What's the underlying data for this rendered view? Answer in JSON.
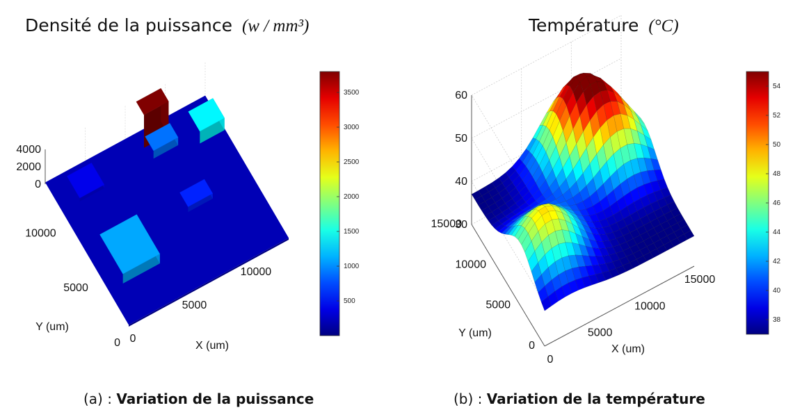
{
  "panel_a": {
    "title": "Densité de la puissance",
    "unit": "(w / mm³)",
    "caption_tag": "(a) :",
    "caption": "Variation de la puissance"
  },
  "panel_b": {
    "title": "Température",
    "unit": "(°C)",
    "caption_tag": "(b) :",
    "caption": "Variation de la température"
  },
  "chart_data": [
    {
      "type": "bar3d",
      "title": "Densité de la puissance (w / mm³)",
      "xlabel": "X (um)",
      "ylabel": "Y (um)",
      "x_ticks": [
        "0",
        "5000",
        "10000"
      ],
      "y_ticks": [
        "0",
        "5000",
        "10000"
      ],
      "z_ticks": [
        "0",
        "2000",
        "4000"
      ],
      "xlim": [
        0,
        13000
      ],
      "ylim": [
        0,
        13000
      ],
      "zlim": [
        0,
        4000
      ],
      "colorbar": {
        "min": 0,
        "max": 3800,
        "ticks": [
          500,
          1000,
          1500,
          2000,
          2500,
          3000,
          3500
        ]
      },
      "blocks": [
        {
          "x": [
            1200,
            4200
          ],
          "y": [
            3200,
            6800
          ],
          "value": 1100
        },
        {
          "x": [
            7600,
            9600
          ],
          "y": [
            10700,
            12000
          ],
          "value": 900
        },
        {
          "x": [
            7400,
            9400
          ],
          "y": [
            11800,
            13000
          ],
          "value": 3800
        },
        {
          "x": [
            11000,
            13000
          ],
          "y": [
            10000,
            11800
          ],
          "value": 1400
        },
        {
          "x": [
            7800,
            9800
          ],
          "y": [
            5700,
            7000
          ],
          "value": 600
        },
        {
          "x": [
            1500,
            3500
          ],
          "y": [
            10500,
            12500
          ],
          "value": 400
        }
      ],
      "base_value": 200
    },
    {
      "type": "surface",
      "title": "Température (°C)",
      "xlabel": "X (um)",
      "ylabel": "Y (um)",
      "x_ticks": [
        "0",
        "5000",
        "10000",
        "15000"
      ],
      "y_ticks": [
        "0",
        "5000",
        "10000",
        "15000"
      ],
      "z_ticks": [
        "30",
        "40",
        "50",
        "60"
      ],
      "xlim": [
        0,
        15000
      ],
      "ylim": [
        0,
        15000
      ],
      "zlim": [
        30,
        60
      ],
      "colorbar": {
        "min": 37,
        "max": 55,
        "ticks": [
          38,
          40,
          42,
          44,
          46,
          48,
          50,
          52,
          54
        ]
      },
      "base_temperature": 37,
      "hotspots": [
        {
          "x": 9500,
          "y": 13000,
          "amplitude": 17,
          "spread": 2600
        },
        {
          "x": 2500,
          "y": 5000,
          "amplitude": 12,
          "spread": 2600
        },
        {
          "x": 12500,
          "y": 10000,
          "amplitude": 10,
          "spread": 2400
        }
      ]
    }
  ]
}
